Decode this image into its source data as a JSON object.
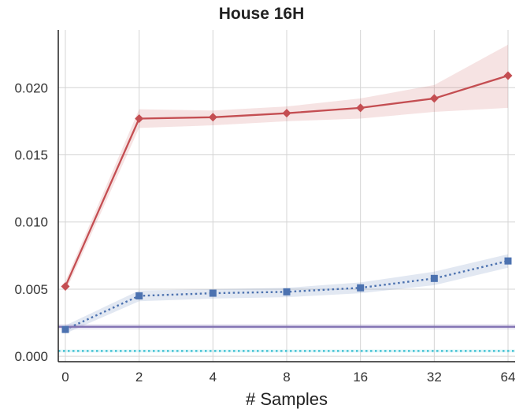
{
  "chart_data": {
    "type": "line",
    "title": "House 16H",
    "xlabel": "# Samples",
    "ylabel": "",
    "x_ticks": [
      "0",
      "2",
      "4",
      "8",
      "16",
      "32",
      "64"
    ],
    "y_ticks": [
      "0.000",
      "0.005",
      "0.010",
      "0.015",
      "0.020"
    ],
    "ylim": [
      -0.0004,
      0.0243
    ],
    "grid": true,
    "series": [
      {
        "style": "solid-diamond",
        "color": "#c44e52",
        "values": [
          0.0052,
          0.0177,
          0.0178,
          0.0181,
          0.0185,
          0.0192,
          0.0209
        ],
        "lower": [
          0.0048,
          0.017,
          0.0172,
          0.0175,
          0.0177,
          0.0182,
          0.0185
        ],
        "upper": [
          0.0056,
          0.0184,
          0.0183,
          0.0186,
          0.0192,
          0.0202,
          0.0232
        ]
      },
      {
        "style": "dotted-square",
        "color": "#4c72b0",
        "values": [
          0.002,
          0.0045,
          0.0047,
          0.0048,
          0.0051,
          0.0058,
          0.0071
        ],
        "lower": [
          0.0017,
          0.0041,
          0.0043,
          0.0044,
          0.0047,
          0.0053,
          0.0066
        ],
        "upper": [
          0.0023,
          0.0049,
          0.005,
          0.0051,
          0.0055,
          0.0063,
          0.0076
        ]
      },
      {
        "style": "solid-flat",
        "color": "#8172b2",
        "values": [
          0.0022,
          0.0022,
          0.0022,
          0.0022,
          0.0022,
          0.0022,
          0.0022
        ],
        "lower": [
          0.002,
          0.002,
          0.002,
          0.002,
          0.002,
          0.002,
          0.002
        ],
        "upper": [
          0.0024,
          0.0024,
          0.0024,
          0.0024,
          0.0024,
          0.0024,
          0.0024
        ]
      },
      {
        "style": "dotted-flat",
        "color": "#47c4d4",
        "values": [
          0.0004,
          0.0004,
          0.0004,
          0.0004,
          0.0004,
          0.0004,
          0.0004
        ],
        "lower": [
          0.0003,
          0.0003,
          0.0003,
          0.0003,
          0.0003,
          0.0003,
          0.0003
        ],
        "upper": [
          0.0005,
          0.0005,
          0.0005,
          0.0005,
          0.0005,
          0.0005,
          0.0005
        ]
      }
    ]
  }
}
